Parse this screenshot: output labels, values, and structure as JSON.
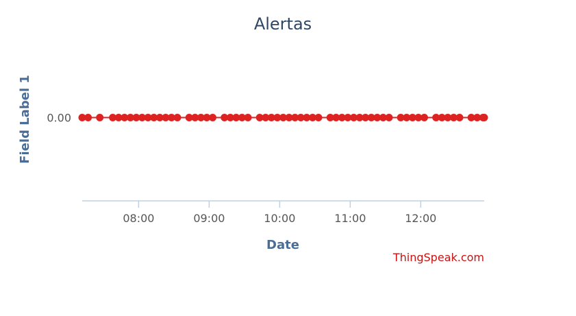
{
  "chart_data": {
    "type": "line",
    "title": "Alertas",
    "xlabel": "Date",
    "ylabel": "Field Label 1",
    "x_axis": {
      "type": "time",
      "min": "07:12",
      "max": "12:54",
      "ticks": [
        "08:00",
        "09:00",
        "10:00",
        "11:00",
        "12:00"
      ]
    },
    "y_axis": {
      "ticks": [
        "0.00"
      ],
      "range": [
        -1,
        1
      ]
    },
    "grid": false,
    "legend": "none",
    "series": [
      {
        "color": "#dd2222",
        "marker": "circle",
        "x": [
          "07:12",
          "07:17",
          "07:27",
          "07:38",
          "07:43",
          "07:48",
          "07:53",
          "07:58",
          "08:03",
          "08:08",
          "08:13",
          "08:18",
          "08:23",
          "08:28",
          "08:33",
          "08:43",
          "08:48",
          "08:53",
          "08:58",
          "09:03",
          "09:13",
          "09:18",
          "09:23",
          "09:28",
          "09:33",
          "09:43",
          "09:48",
          "09:53",
          "09:58",
          "10:03",
          "10:08",
          "10:13",
          "10:18",
          "10:23",
          "10:28",
          "10:33",
          "10:43",
          "10:48",
          "10:53",
          "10:58",
          "11:03",
          "11:08",
          "11:13",
          "11:18",
          "11:23",
          "11:28",
          "11:33",
          "11:43",
          "11:48",
          "11:53",
          "11:58",
          "12:03",
          "12:13",
          "12:18",
          "12:23",
          "12:28",
          "12:33",
          "12:43",
          "12:48",
          "12:53",
          "12:54"
        ],
        "values": [
          0,
          0,
          0,
          0,
          0,
          0,
          0,
          0,
          0,
          0,
          0,
          0,
          0,
          0,
          0,
          0,
          0,
          0,
          0,
          0,
          0,
          0,
          0,
          0,
          0,
          0,
          0,
          0,
          0,
          0,
          0,
          0,
          0,
          0,
          0,
          0,
          0,
          0,
          0,
          0,
          0,
          0,
          0,
          0,
          0,
          0,
          0,
          0,
          0,
          0,
          0,
          0,
          0,
          0,
          0,
          0,
          0,
          0,
          0,
          0,
          0
        ]
      }
    ]
  },
  "credit": {
    "text": "ThingSpeak.com",
    "color": "#cc1111"
  },
  "colors": {
    "axis_line": "#c0d0e0",
    "title": "#2f4664",
    "axis_title": "#4a6d97"
  }
}
